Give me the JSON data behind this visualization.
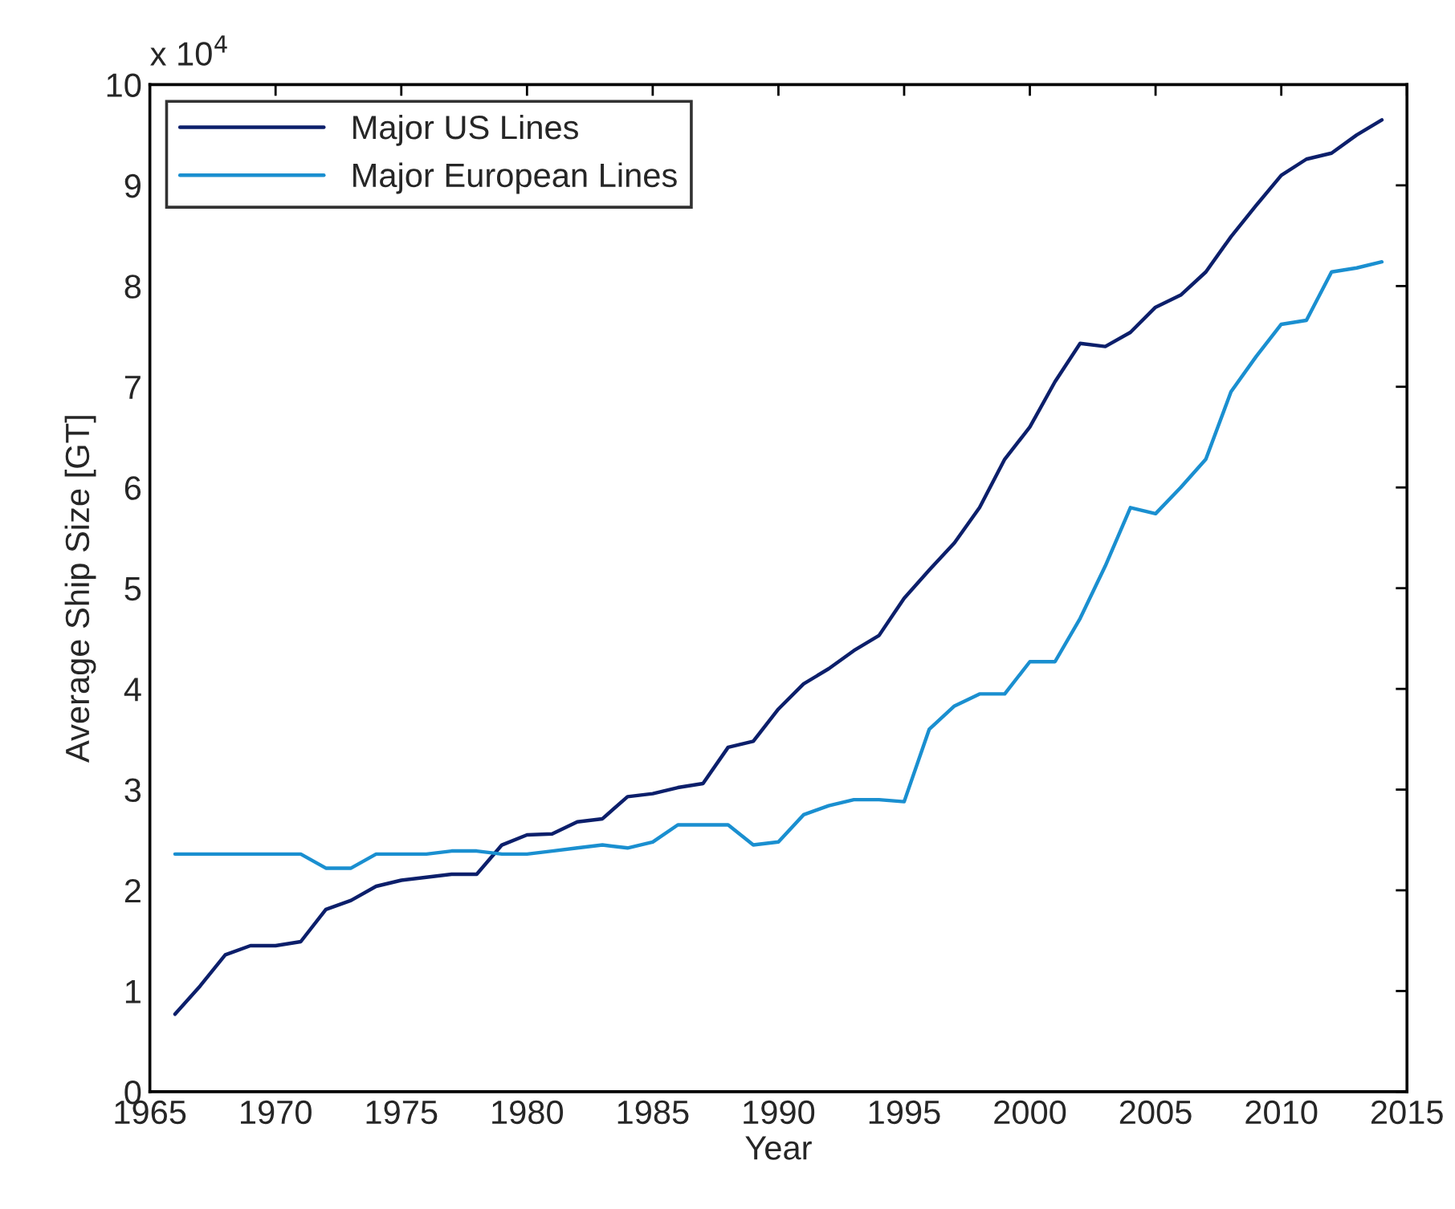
{
  "chart_data": {
    "type": "line",
    "xlabel": "Year",
    "ylabel": "Average Ship Size [GT]",
    "annotations": [
      "x 10$^{4}$"
    ],
    "x": [
      1966,
      1967,
      1968,
      1969,
      1970,
      1971,
      1972,
      1973,
      1974,
      1975,
      1976,
      1977,
      1978,
      1979,
      1980,
      1981,
      1982,
      1983,
      1984,
      1985,
      1986,
      1987,
      1988,
      1989,
      1990,
      1991,
      1992,
      1993,
      1994,
      1995,
      1996,
      1997,
      1998,
      1999,
      2000,
      2001,
      2002,
      2003,
      2004,
      2005,
      2006,
      2007,
      2008,
      2009,
      2010,
      2011,
      2012,
      2013,
      2014
    ],
    "series": [
      {
        "name": "Major US Lines",
        "color": "#0c1f6b",
        "values": [
          0.77,
          1.05,
          1.36,
          1.45,
          1.45,
          1.49,
          1.81,
          1.9,
          2.04,
          2.1,
          2.13,
          2.16,
          2.16,
          2.45,
          2.55,
          2.56,
          2.68,
          2.71,
          2.93,
          2.96,
          3.02,
          3.06,
          3.42,
          3.48,
          3.8,
          4.05,
          4.2,
          4.38,
          4.53,
          4.9,
          5.18,
          5.45,
          5.8,
          6.28,
          6.6,
          7.05,
          7.43,
          7.4,
          7.54,
          7.79,
          7.91,
          8.14,
          8.49,
          8.8,
          9.1,
          9.26,
          9.32,
          9.5,
          9.65
        ]
      },
      {
        "name": "Major European Lines",
        "color": "#1a8fd0",
        "values": [
          2.36,
          2.36,
          2.36,
          2.36,
          2.36,
          2.36,
          2.22,
          2.22,
          2.36,
          2.36,
          2.36,
          2.39,
          2.39,
          2.36,
          2.36,
          2.39,
          2.42,
          2.45,
          2.42,
          2.48,
          2.65,
          2.65,
          2.65,
          2.45,
          2.48,
          2.75,
          2.84,
          2.9,
          2.9,
          2.88,
          3.6,
          3.83,
          3.95,
          3.95,
          4.27,
          4.27,
          4.7,
          5.22,
          5.8,
          5.74,
          6.0,
          6.28,
          6.95,
          7.3,
          7.62,
          7.66,
          8.14,
          8.18,
          8.24
        ]
      }
    ],
    "xlim": [
      1965,
      2015
    ],
    "xticks": [
      1965,
      1970,
      1975,
      1980,
      1985,
      1990,
      1995,
      2000,
      2005,
      2010,
      2015
    ],
    "ylim": [
      0,
      10
    ],
    "yticks": [
      0,
      1,
      2,
      3,
      4,
      5,
      6,
      7,
      8,
      9,
      10
    ],
    "grid": false,
    "legend": "top left",
    "marker": "none",
    "line_style": "solid"
  }
}
